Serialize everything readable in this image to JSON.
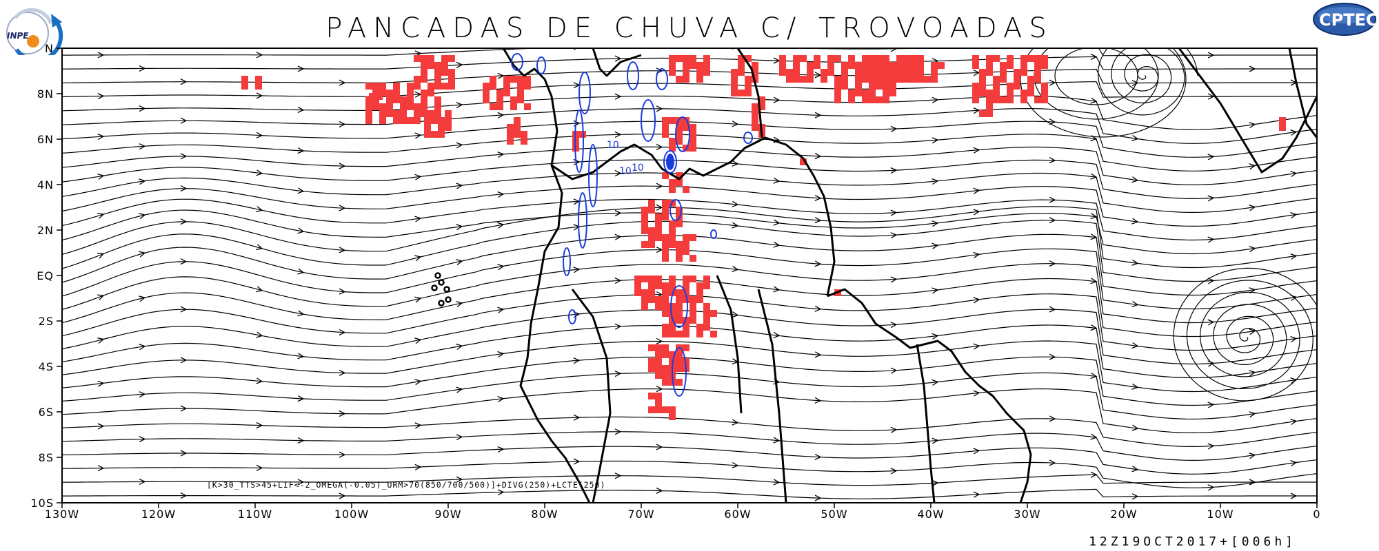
{
  "title": "PANCADAS DE CHUVA C/ TROVOADAS",
  "timestamp": "12Z19OCT2017+[006h]",
  "formula": "[K>30_TTS>45+LIF<-2_OMEGA(-0.05)_URM>70(850/700/500)]+DIVG(250)+LCTE(250)",
  "logos": {
    "left": "INPE",
    "right": "CPTEC"
  },
  "colors": {
    "rain": "#f43c3c",
    "contour": "#1a3cdc",
    "streamline": "#000000"
  },
  "chart_data": {
    "type": "map",
    "x_axis": {
      "range": [
        -130,
        0
      ],
      "tick_labels": [
        "130W",
        "120W",
        "110W",
        "100W",
        "90W",
        "80W",
        "70W",
        "60W",
        "50W",
        "40W",
        "30W",
        "20W",
        "10W",
        "0"
      ]
    },
    "y_axis": {
      "range": [
        -10,
        10
      ],
      "tick_labels": [
        "10S",
        "8S",
        "6S",
        "4S",
        "2S",
        "EQ",
        "2N",
        "4N",
        "6N",
        "8N",
        "N"
      ]
    },
    "contour_labels": [
      "10",
      "10",
      "10"
    ]
  }
}
